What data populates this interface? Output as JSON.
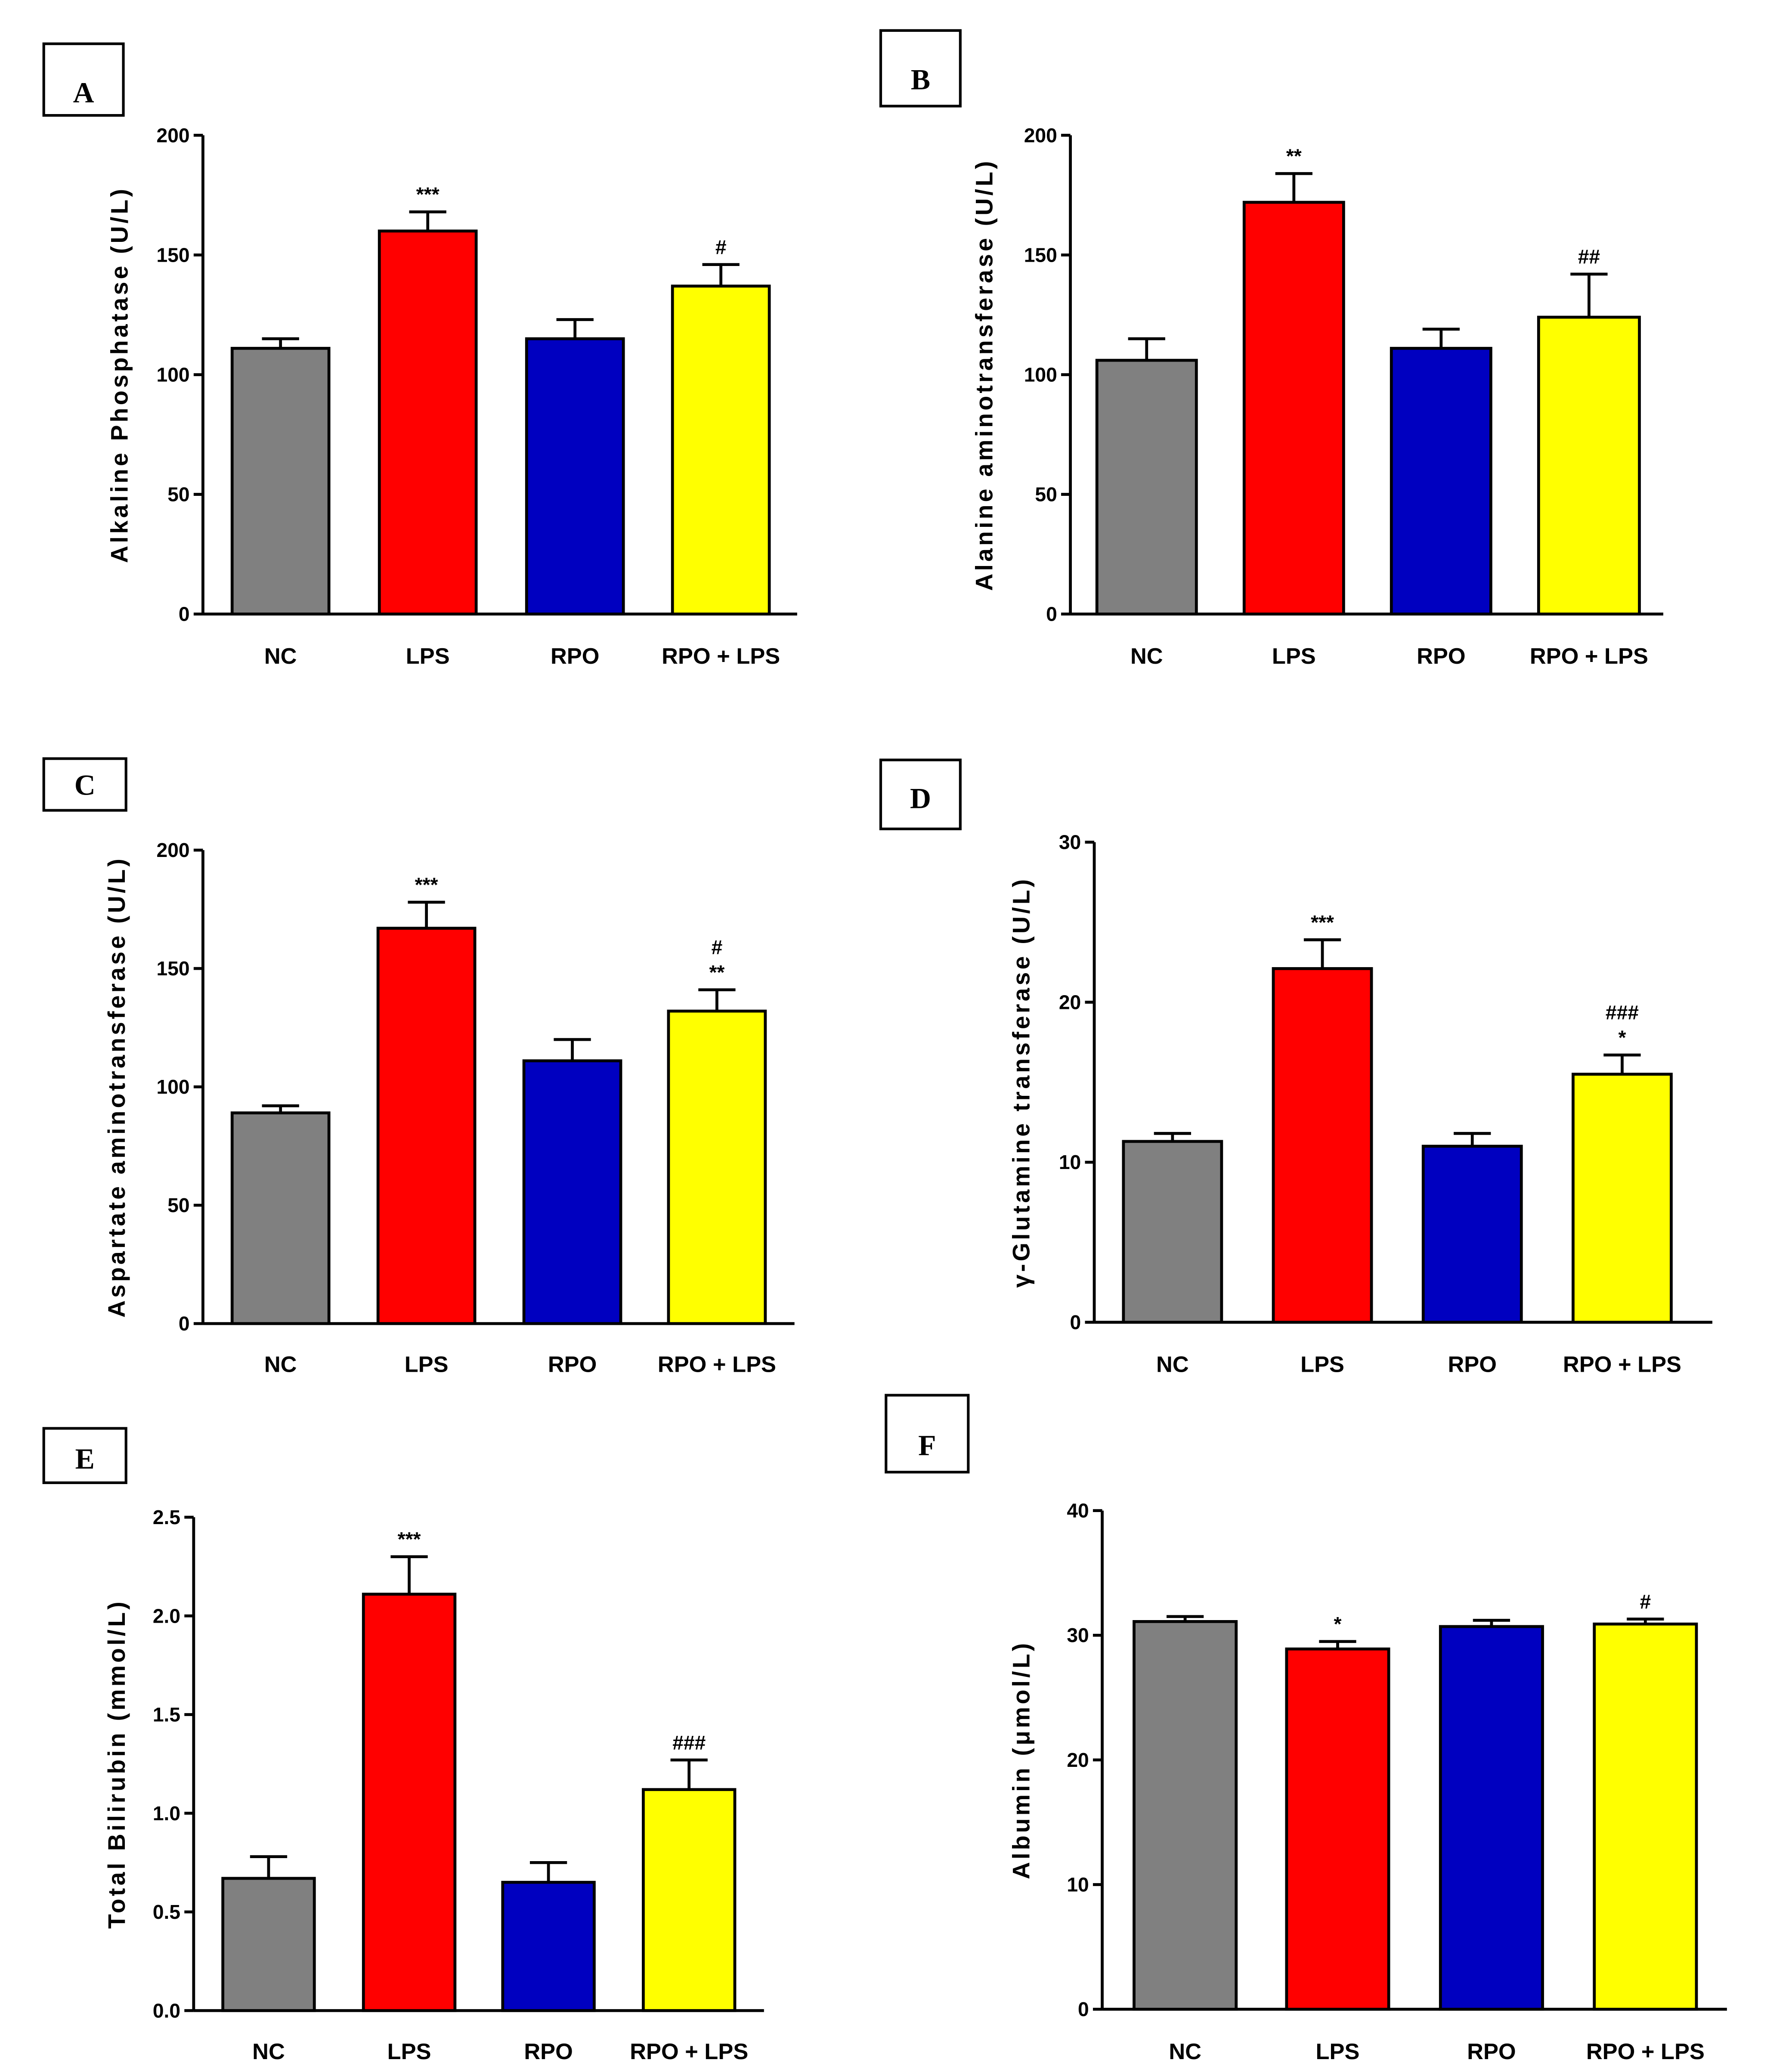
{
  "colors": {
    "NC": "#808080",
    "LPS": "#ff0000",
    "RPO": "#0000c0",
    "RPO + LPS": "#ffff00",
    "axis": "#000000"
  },
  "chart_data": [
    {
      "panel": "A",
      "type": "bar",
      "ylabel": "Alkaline Phosphatase (U/L)",
      "categories": [
        "NC",
        "LPS",
        "RPO",
        "RPO + LPS"
      ],
      "values": [
        111,
        160,
        115,
        137
      ],
      "errors": [
        4,
        8,
        8,
        9
      ],
      "significance": [
        "",
        "***",
        "",
        "#"
      ],
      "ylim": [
        0,
        200
      ],
      "yticks": [
        "0",
        "50",
        "100",
        "150",
        "200"
      ]
    },
    {
      "panel": "B",
      "type": "bar",
      "ylabel": "Alanine aminotransferase (U/L)",
      "categories": [
        "NC",
        "LPS",
        "RPO",
        "RPO + LPS"
      ],
      "values": [
        106,
        172,
        111,
        124
      ],
      "errors": [
        9,
        12,
        8,
        18
      ],
      "significance": [
        "",
        "**",
        "",
        "##"
      ],
      "ylim": [
        0,
        200
      ],
      "yticks": [
        "0",
        "50",
        "100",
        "150",
        "200"
      ]
    },
    {
      "panel": "C",
      "type": "bar",
      "ylabel": "Aspartate aminotransferase (U/L)",
      "categories": [
        "NC",
        "LPS",
        "RPO",
        "RPO + LPS"
      ],
      "values": [
        89,
        167,
        111,
        132
      ],
      "errors": [
        3,
        11,
        9,
        9
      ],
      "significance": [
        "",
        "***",
        "",
        "#\n**"
      ],
      "ylim": [
        0,
        200
      ],
      "yticks": [
        "0",
        "50",
        "100",
        "150",
        "200"
      ]
    },
    {
      "panel": "D",
      "type": "bar",
      "ylabel": "γ-Glutamine transferase (U/L)",
      "categories": [
        "NC",
        "LPS",
        "RPO",
        "RPO + LPS"
      ],
      "values": [
        11.3,
        22.1,
        11.0,
        15.5
      ],
      "errors": [
        0.5,
        1.8,
        0.8,
        1.2
      ],
      "significance": [
        "",
        "***",
        "",
        "###\n*"
      ],
      "ylim": [
        0,
        30
      ],
      "yticks": [
        "0",
        "10",
        "20",
        "30"
      ]
    },
    {
      "panel": "E",
      "type": "bar",
      "ylabel": "Total Bilirubin (mmol/L)",
      "categories": [
        "NC",
        "LPS",
        "RPO",
        "RPO + LPS"
      ],
      "values": [
        0.67,
        2.11,
        0.65,
        1.12
      ],
      "errors": [
        0.11,
        0.19,
        0.1,
        0.15
      ],
      "significance": [
        "",
        "***",
        "",
        "###"
      ],
      "ylim": [
        0,
        2.5
      ],
      "yticks": [
        "0.0",
        "0.5",
        "1.0",
        "1.5",
        "2.0",
        "2.5"
      ]
    },
    {
      "panel": "F",
      "type": "bar",
      "ylabel": "Albumin (μmol/L)",
      "categories": [
        "NC",
        "LPS",
        "RPO",
        "RPO + LPS"
      ],
      "values": [
        31.1,
        28.9,
        30.7,
        30.9
      ],
      "errors": [
        0.4,
        0.6,
        0.5,
        0.4
      ],
      "significance": [
        "",
        "*",
        "",
        "#"
      ],
      "ylim": [
        0,
        40
      ],
      "yticks": [
        "0",
        "10",
        "20",
        "30",
        "40"
      ]
    }
  ]
}
